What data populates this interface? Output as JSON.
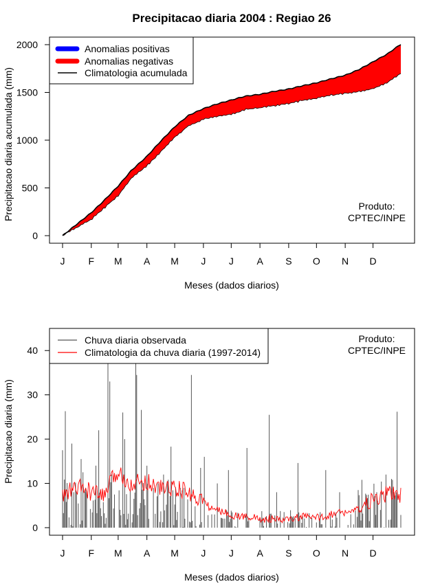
{
  "page_title": "Precipitacao diaria 2004 : Regiao 26",
  "product_label_line1": "Produto:",
  "product_label_line2": "CPTEC/INPE",
  "colors": {
    "positive_anomaly": "#0000ff",
    "negative_anomaly": "#ff0000",
    "climatology_cumulative": "#000000",
    "observed_rain": "#555555",
    "climatology_daily": "#ff0000"
  },
  "chart_data": [
    {
      "type": "area",
      "title": "Precipitacao diaria 2004 : Regiao 26",
      "xlabel": "Meses (dados diarios)",
      "ylabel": "Precipitacao diaria acumulada (mm)",
      "xlim": [
        1,
        366
      ],
      "ylim": [
        0,
        2000
      ],
      "grid": false,
      "legend_position": "top-left",
      "x_tick_labels": [
        "J",
        "F",
        "M",
        "A",
        "M",
        "J",
        "J",
        "A",
        "S",
        "O",
        "N",
        "D"
      ],
      "x_tick_days": [
        1,
        32,
        61,
        92,
        122,
        153,
        183,
        214,
        245,
        275,
        306,
        336
      ],
      "y_tick_labels": [
        "0",
        "500",
        "1000",
        "1500",
        "2000"
      ],
      "y_ticks": [
        0,
        500,
        1000,
        1500,
        2000
      ],
      "legend": [
        "Anomalias positivas",
        "Anomalias negativas",
        "Climatologia acumulada"
      ],
      "x_days": [
        1,
        15,
        32,
        46,
        61,
        75,
        92,
        106,
        122,
        137,
        153,
        168,
        183,
        198,
        214,
        229,
        245,
        260,
        275,
        290,
        306,
        321,
        336,
        351,
        366
      ],
      "climatology_cumulative": [
        0,
        110,
        240,
        370,
        520,
        680,
        830,
        980,
        1140,
        1260,
        1330,
        1380,
        1420,
        1460,
        1480,
        1510,
        1535,
        1570,
        1600,
        1640,
        1680,
        1740,
        1820,
        1900,
        2005
      ],
      "observed_cumulative": [
        0,
        80,
        170,
        290,
        420,
        600,
        730,
        870,
        1030,
        1150,
        1220,
        1250,
        1270,
        1320,
        1340,
        1360,
        1385,
        1415,
        1440,
        1470,
        1490,
        1510,
        1540,
        1600,
        1700
      ]
    },
    {
      "type": "line",
      "title": "",
      "xlabel": "Meses (dados diarios)",
      "ylabel": "Precipitacao diaria (mm)",
      "xlim": [
        1,
        366
      ],
      "ylim": [
        0,
        45
      ],
      "grid": false,
      "legend_position": "top-left",
      "x_tick_labels": [
        "J",
        "F",
        "M",
        "A",
        "M",
        "J",
        "J",
        "A",
        "S",
        "O",
        "N",
        "D"
      ],
      "x_tick_days": [
        1,
        32,
        61,
        92,
        122,
        153,
        183,
        214,
        245,
        275,
        306,
        336
      ],
      "y_tick_labels": [
        "0",
        "10",
        "20",
        "30",
        "40"
      ],
      "y_ticks": [
        0,
        10,
        20,
        30,
        40
      ],
      "legend": [
        "Chuva diaria observada",
        "Climatologia da chuva diaria (1997-2014)"
      ],
      "climatology_daily_x": [
        1,
        10,
        20,
        32,
        45,
        55,
        61,
        75,
        92,
        105,
        122,
        135,
        150,
        160,
        175,
        190,
        205,
        214,
        225,
        235,
        245,
        260,
        275,
        290,
        306,
        320,
        336,
        350,
        360,
        366
      ],
      "climatology_daily_y": [
        7,
        8.5,
        9,
        8,
        7,
        11,
        12.5,
        10,
        10.5,
        9,
        9,
        8,
        6.5,
        4.5,
        3.5,
        2.5,
        2.5,
        1.8,
        2,
        1.6,
        1.8,
        2.5,
        2.2,
        3,
        3.5,
        4,
        6,
        7.5,
        8,
        7
      ],
      "observed_peaks": [
        {
          "day": 1,
          "value": 17.5
        },
        {
          "day": 4,
          "value": 26.3
        },
        {
          "day": 11,
          "value": 19
        },
        {
          "day": 13,
          "value": 8
        },
        {
          "day": 21,
          "value": 15.5
        },
        {
          "day": 23,
          "value": 12.5
        },
        {
          "day": 37,
          "value": 14
        },
        {
          "day": 40,
          "value": 22
        },
        {
          "day": 50,
          "value": 40
        },
        {
          "day": 52,
          "value": 33
        },
        {
          "day": 54,
          "value": 12
        },
        {
          "day": 66,
          "value": 26
        },
        {
          "day": 68,
          "value": 20
        },
        {
          "day": 80,
          "value": 40
        },
        {
          "day": 81,
          "value": 34.5
        },
        {
          "day": 86,
          "value": 26.6
        },
        {
          "day": 92,
          "value": 14
        },
        {
          "day": 110,
          "value": 12
        },
        {
          "day": 118,
          "value": 18.3
        },
        {
          "day": 128,
          "value": 9
        },
        {
          "day": 140,
          "value": 34.5
        },
        {
          "day": 150,
          "value": 13.5
        },
        {
          "day": 154,
          "value": 16
        },
        {
          "day": 168,
          "value": 10
        },
        {
          "day": 180,
          "value": 13
        },
        {
          "day": 200,
          "value": 18
        },
        {
          "day": 224,
          "value": 25.5
        },
        {
          "day": 232,
          "value": 8
        },
        {
          "day": 255,
          "value": 14.6
        },
        {
          "day": 285,
          "value": 13
        },
        {
          "day": 300,
          "value": 8
        },
        {
          "day": 320,
          "value": 8.5
        },
        {
          "day": 340,
          "value": 8
        },
        {
          "day": 350,
          "value": 12
        },
        {
          "day": 356,
          "value": 11
        },
        {
          "day": 362,
          "value": 26.2
        }
      ]
    }
  ]
}
